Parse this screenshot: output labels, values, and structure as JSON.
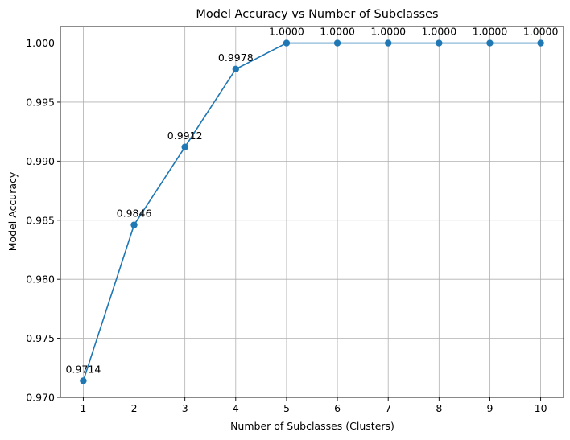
{
  "chart_data": {
    "type": "line",
    "title": "Model Accuracy vs Number of Subclasses",
    "xlabel": "Number of Subclasses (Clusters)",
    "ylabel": "Model Accuracy",
    "x": [
      1,
      2,
      3,
      4,
      5,
      6,
      7,
      8,
      9,
      10
    ],
    "y": [
      0.9714,
      0.9846,
      0.9912,
      0.9978,
      1.0,
      1.0,
      1.0,
      1.0,
      1.0,
      1.0
    ],
    "data_labels": [
      "0.9714",
      "0.9846",
      "0.9912",
      "0.9978",
      "1.0000",
      "1.0000",
      "1.0000",
      "1.0000",
      "1.0000",
      "1.0000"
    ],
    "xticks": [
      "1",
      "2",
      "3",
      "4",
      "5",
      "6",
      "7",
      "8",
      "9",
      "10"
    ],
    "yticks": [
      "0.970",
      "0.975",
      "0.980",
      "0.985",
      "0.990",
      "0.995",
      "1.000"
    ],
    "yticks_values": [
      0.97,
      0.975,
      0.98,
      0.985,
      0.99,
      0.995,
      1.0
    ],
    "xlim": [
      0.55,
      10.45
    ],
    "ylim": [
      0.97,
      1.0014
    ],
    "grid": true,
    "marker": "circle",
    "color": "#1f77b4"
  }
}
